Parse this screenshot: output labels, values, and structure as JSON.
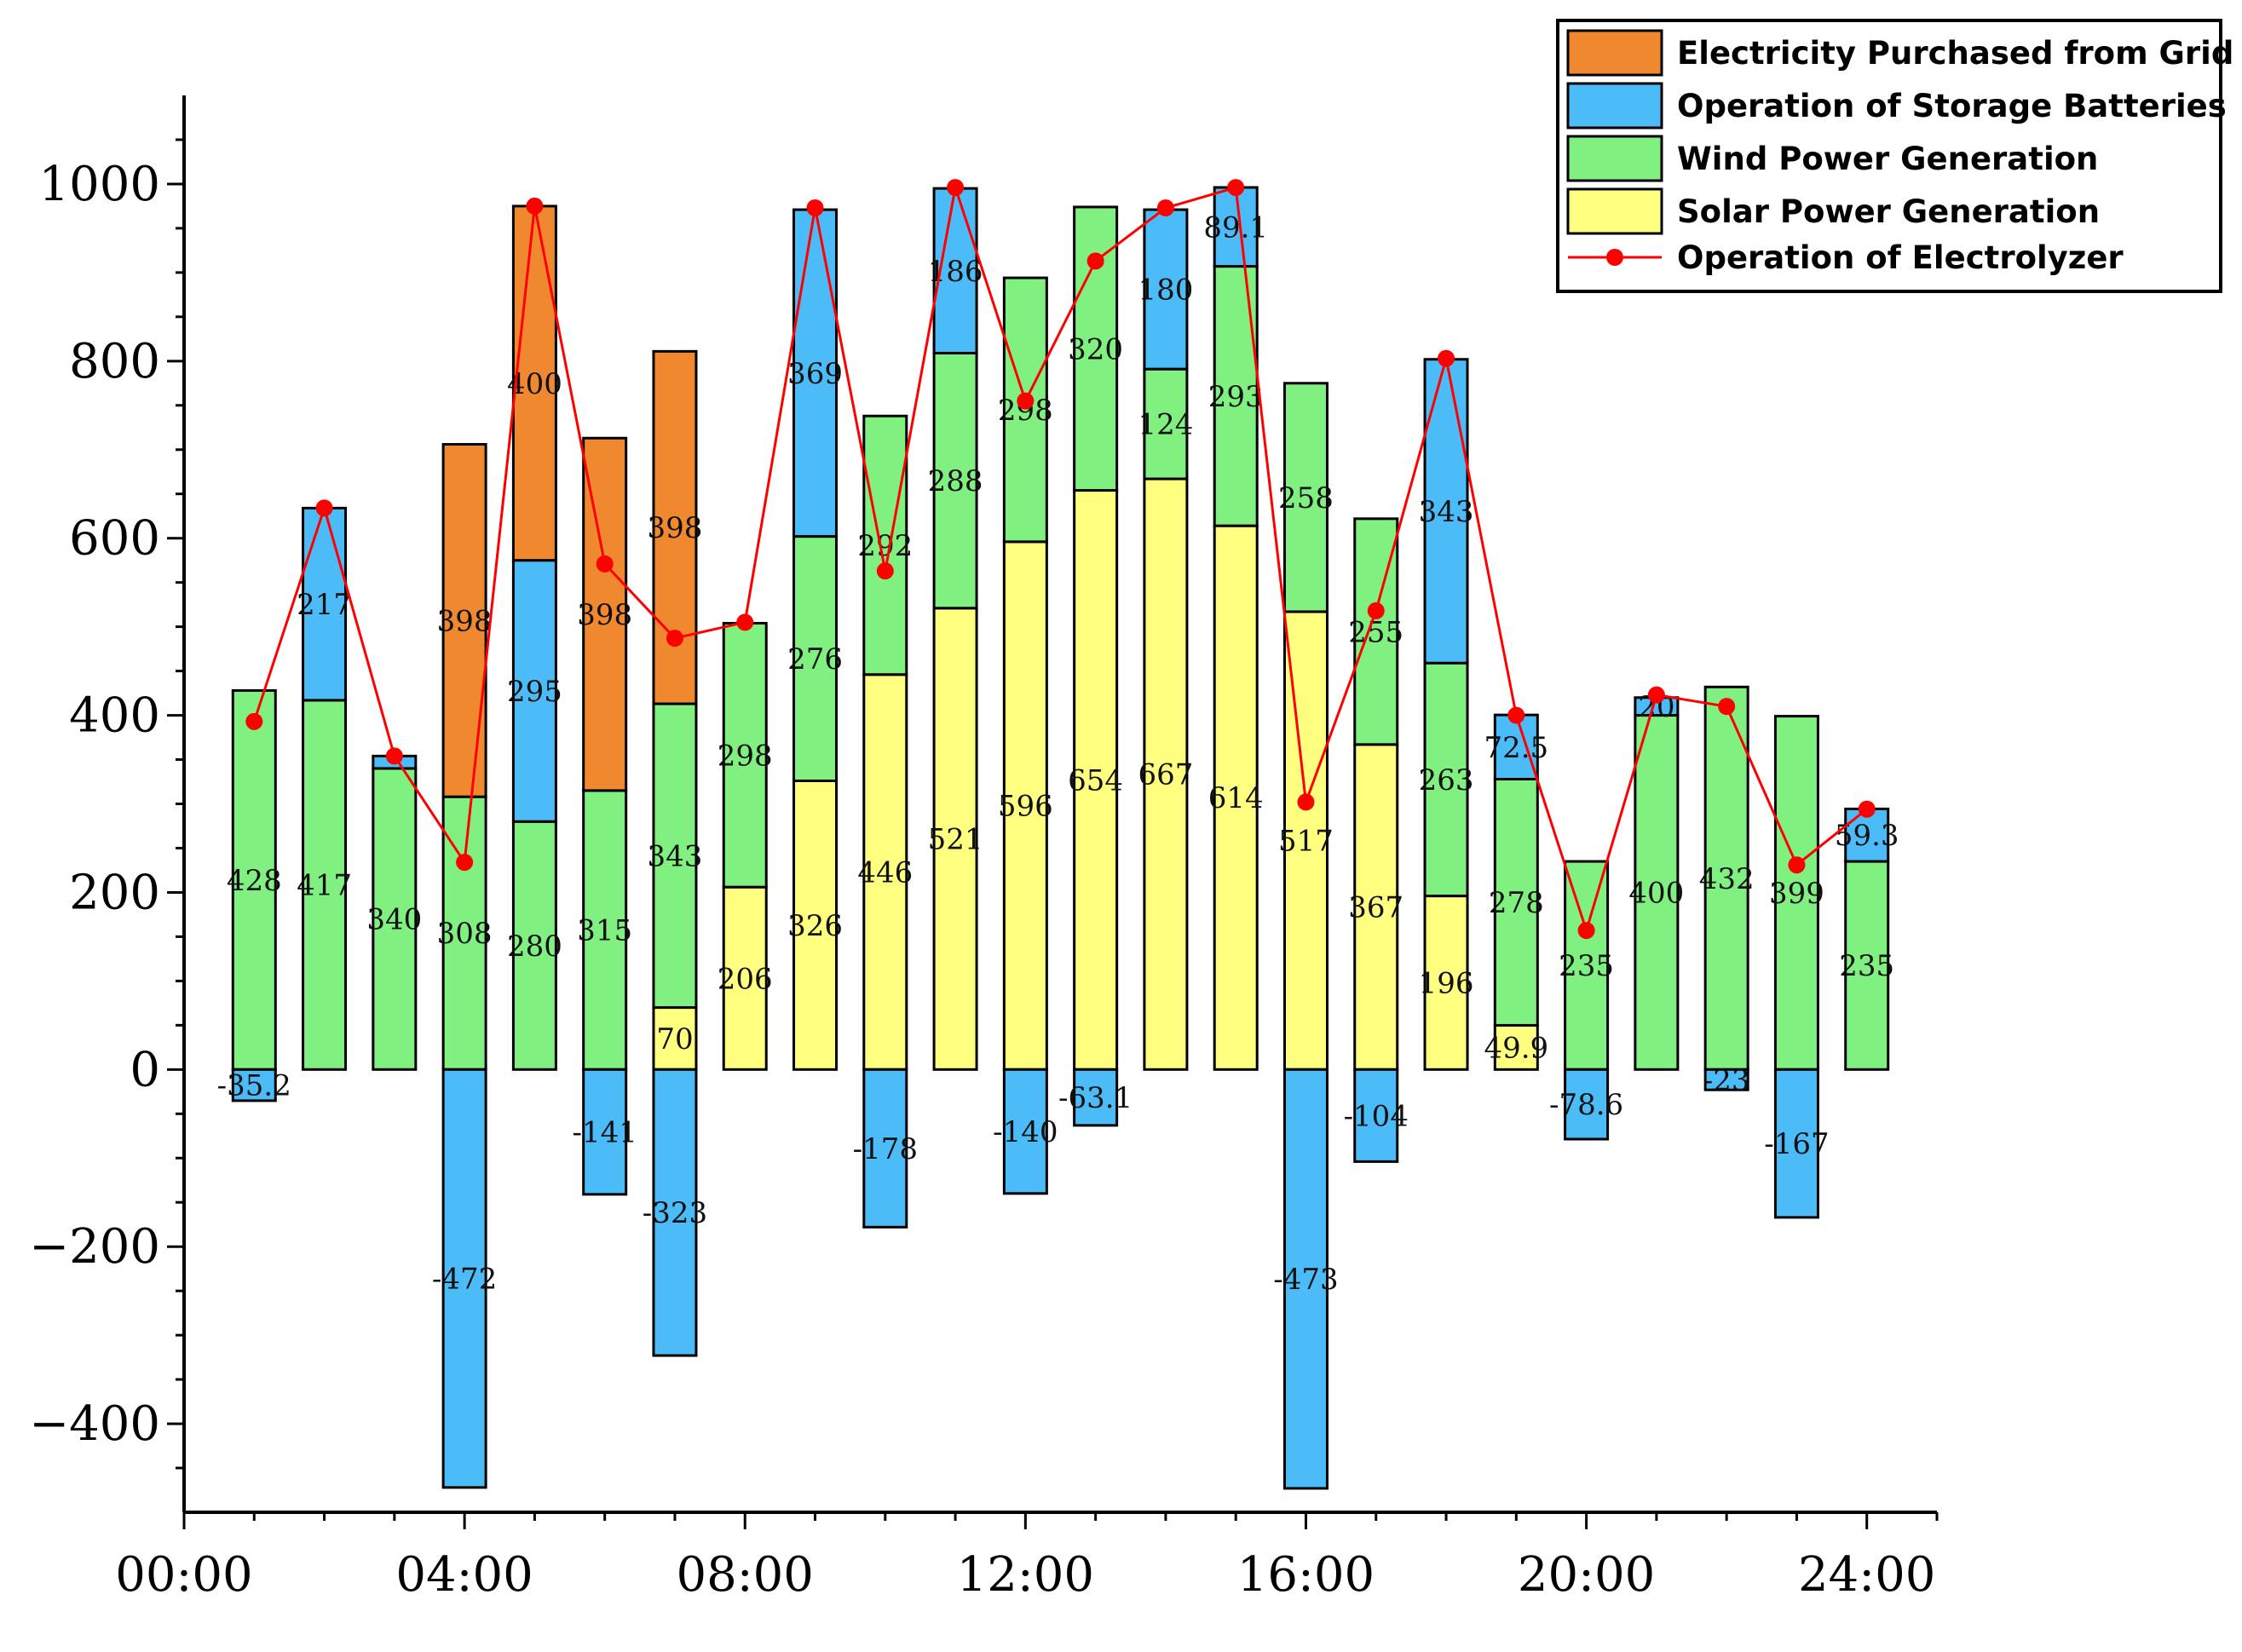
{
  "chart_data": {
    "type": "bar",
    "stacked": true,
    "x": [
      1,
      2,
      3,
      4,
      5,
      6,
      7,
      8,
      9,
      10,
      11,
      12,
      13,
      14,
      15,
      16,
      17,
      18,
      19,
      20,
      21,
      22,
      23,
      24
    ],
    "xticks": [
      {
        "value": 0,
        "label": "00:00"
      },
      {
        "value": 4,
        "label": "04:00"
      },
      {
        "value": 8,
        "label": "08:00"
      },
      {
        "value": 12,
        "label": "12:00"
      },
      {
        "value": 16,
        "label": "16:00"
      },
      {
        "value": 20,
        "label": "20:00"
      },
      {
        "value": 24,
        "label": "24:00"
      }
    ],
    "yticks": [
      {
        "value": -400,
        "label": "−400"
      },
      {
        "value": -200,
        "label": "−200"
      },
      {
        "value": 0,
        "label": "0"
      },
      {
        "value": 200,
        "label": "200"
      },
      {
        "value": 400,
        "label": "400"
      },
      {
        "value": 600,
        "label": "600"
      },
      {
        "value": 800,
        "label": "800"
      },
      {
        "value": 1000,
        "label": "1000"
      }
    ],
    "xlim": [
      0,
      25
    ],
    "ylim": [
      -500,
      1100
    ],
    "series": [
      {
        "name": "Solar Power Generation",
        "color": "#ffff80",
        "values": [
          0,
          0,
          0,
          0,
          0,
          0,
          70,
          206,
          326,
          446,
          521,
          596,
          654,
          667,
          614,
          517,
          367,
          196,
          49.9,
          0,
          0,
          0,
          0,
          0
        ],
        "labels": [
          "",
          "",
          "",
          "",
          "",
          "",
          "70",
          "206",
          "326",
          "446",
          "521",
          "596",
          "654",
          "667",
          "614",
          "517",
          "367",
          "196",
          "49.9",
          "",
          "",
          "",
          "",
          ""
        ]
      },
      {
        "name": "Wind Power Generation",
        "color": "#80f080",
        "values": [
          428,
          417,
          340,
          308,
          280,
          315,
          343,
          298,
          276,
          292,
          288,
          298,
          320,
          124,
          293,
          258,
          255,
          263,
          278,
          235,
          400,
          432,
          399,
          235
        ],
        "labels": [
          "428",
          "417",
          "340",
          "308",
          "280",
          "315",
          "343",
          "298",
          "276",
          "292",
          "288",
          "298",
          "320",
          "124",
          "293",
          "258",
          "255",
          "263",
          "278",
          "235",
          "400",
          "432",
          "399",
          "235"
        ]
      },
      {
        "name": "Operation of Storage Batteries",
        "color": "#4cbcf8",
        "values": [
          -35.2,
          217,
          14,
          -472,
          295,
          -141,
          -323,
          0,
          369,
          -178,
          186,
          -140,
          -63.1,
          180,
          89.1,
          -473,
          -104,
          343,
          72.5,
          -78.6,
          20,
          -23,
          -167,
          59.3
        ],
        "labels": [
          "-35.2",
          "217",
          "",
          "-472",
          "295",
          "-141",
          "-323",
          "",
          "369",
          "-178",
          "186",
          "-140",
          "-63.1",
          "180",
          "89.1",
          "-473",
          "-104",
          "343",
          "72.5",
          "-78.6",
          "20",
          "-23",
          "-167",
          "59.3"
        ]
      },
      {
        "name": "Electricity Purchased from Grid",
        "color": "#f08830",
        "values": [
          0,
          0,
          0,
          398,
          400,
          398,
          398,
          0,
          0,
          0,
          0,
          0,
          0,
          0,
          0,
          0,
          0,
          0,
          0,
          0,
          0,
          0,
          0,
          0
        ],
        "labels": [
          "",
          "",
          "",
          "398",
          "400",
          "398",
          "398",
          "",
          "",
          "",
          "",
          "",
          "",
          "",
          "",
          "",
          "",
          "",
          "",
          "",
          "",
          "",
          "",
          ""
        ]
      }
    ],
    "line": {
      "name": "Operation of Electrolyzer",
      "color": "#ff0000",
      "values": [
        393,
        634,
        354,
        234,
        975,
        571,
        487,
        505,
        973,
        563,
        996,
        755,
        913,
        973,
        996,
        302,
        518,
        803,
        400,
        157,
        423,
        410,
        231,
        294
      ]
    },
    "legend": {
      "position": "top-right",
      "entries": [
        {
          "label": "Electricity Purchased from Grid",
          "kind": "box",
          "color": "#f08830"
        },
        {
          "label": "Operation of  Storage Batteries",
          "kind": "box",
          "color": "#4cbcf8"
        },
        {
          "label": "Wind Power Generation",
          "kind": "box",
          "color": "#80f080"
        },
        {
          "label": "Solar Power Generation",
          "kind": "box",
          "color": "#ffff80"
        },
        {
          "label": "Operation of Electrolyzer",
          "kind": "line",
          "color": "#ff0000"
        }
      ]
    },
    "title": "",
    "xlabel": "",
    "ylabel": ""
  }
}
